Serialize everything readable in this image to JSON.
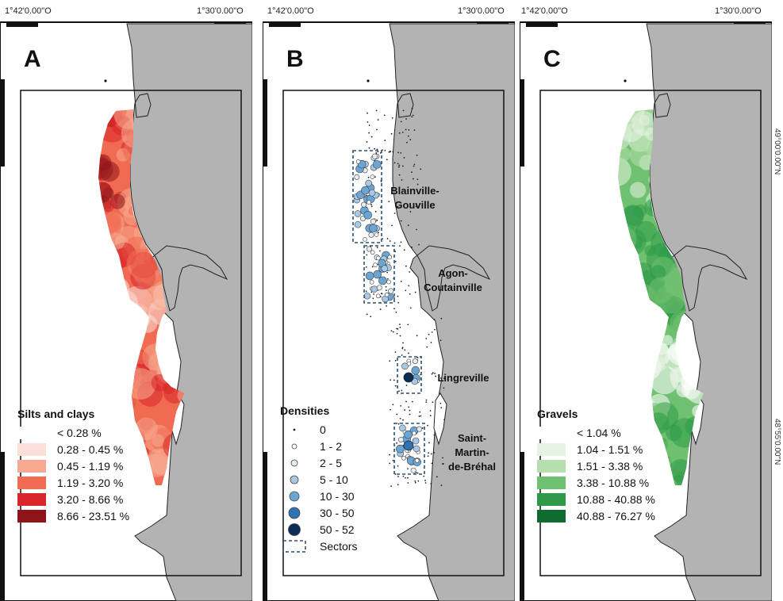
{
  "figure": {
    "panels": [
      {
        "id": "A",
        "letter": "A",
        "coord_left": "1°42'0.00\"O",
        "coord_right": "1°30'0.00\"O",
        "legend_title": "Silts and clays",
        "legend": [
          {
            "label": "< 0.28 %",
            "color": "#ffffff"
          },
          {
            "label": "0.28 - 0.45 %",
            "color": "#fbe0d9"
          },
          {
            "label": "0.45 - 1.19 %",
            "color": "#f6a98f"
          },
          {
            "label": "1.19 - 3.20 %",
            "color": "#f06b52"
          },
          {
            "label": "3.20 - 8.66 %",
            "color": "#d9262a"
          },
          {
            "label": "8.66 - 23.51 %",
            "color": "#8f1419"
          }
        ]
      },
      {
        "id": "B",
        "letter": "B",
        "coord_left": "1°42'0.00\"O",
        "coord_right": "1°30'0.00\"O",
        "legend_title": "Densities",
        "legend": [
          {
            "label": "0",
            "color": "#222222",
            "symbol": "point"
          },
          {
            "label": "1 - 2",
            "color": "#ffffff",
            "symbol": "circle"
          },
          {
            "label": "2 - 5",
            "color": "#e3edf6",
            "symbol": "circle"
          },
          {
            "label": "5 - 10",
            "color": "#a7c9e6",
            "symbol": "circle"
          },
          {
            "label": "10 - 30",
            "color": "#6aa5d4",
            "symbol": "circle"
          },
          {
            "label": "30 - 50",
            "color": "#2f73b3",
            "symbol": "circle"
          },
          {
            "label": "50 - 52",
            "color": "#0c2b55",
            "symbol": "circle"
          },
          {
            "label": "Sectors",
            "color": "#2f4f6f",
            "symbol": "dashed-rect"
          }
        ],
        "sectors": [
          {
            "name_line1": "Blainville-",
            "name_line2": "Gouville",
            "name_line3": ""
          },
          {
            "name_line1": "Agon-",
            "name_line2": "Coutainville",
            "name_line3": ""
          },
          {
            "name_line1": "Lingreville",
            "name_line2": "",
            "name_line3": ""
          },
          {
            "name_line1": "Saint-",
            "name_line2": "Martin-",
            "name_line3": "de-Bréhal"
          }
        ]
      },
      {
        "id": "C",
        "letter": "C",
        "coord_left": "1°42'0.00\"O",
        "coord_right": "1°30'0.00\"O",
        "lat_upper": "49°00'0.00\"N",
        "lat_lower": "48°55'0.00\"N",
        "legend_title": "Gravels",
        "legend": [
          {
            "label": "< 1.04 %",
            "color": "#ffffff"
          },
          {
            "label": "1.04 - 1.51 %",
            "color": "#e6f3e2"
          },
          {
            "label": "1.51 - 3.38 %",
            "color": "#b5dfac"
          },
          {
            "label": "3.38 - 10.88 %",
            "color": "#6fc070"
          },
          {
            "label": "10.88 - 40.88 %",
            "color": "#2e9a48"
          },
          {
            "label": "40.88 - 76.27 %",
            "color": "#0f6b2f"
          }
        ]
      }
    ],
    "colors": {
      "land": "#b3b3b3",
      "sea": "#ffffff",
      "frame": "#111111"
    }
  }
}
